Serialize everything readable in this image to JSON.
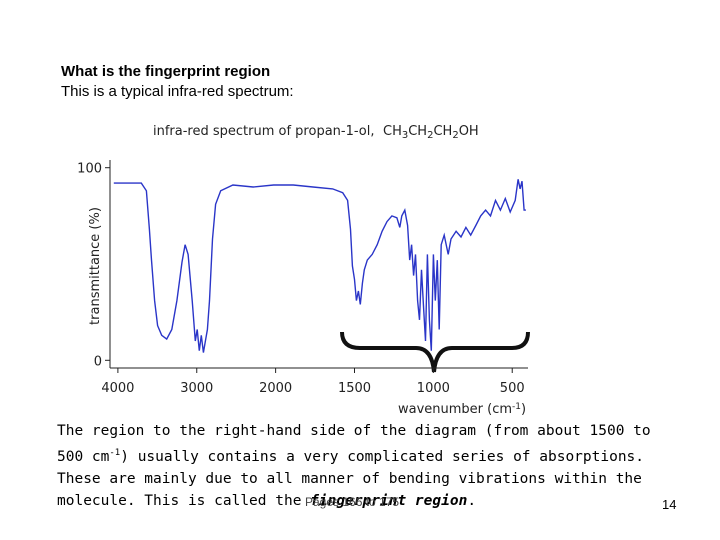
{
  "heading": {
    "title": "What is the fingerprint region",
    "subtitle": "This is a typical infra-red spectrum:"
  },
  "chart_data": {
    "type": "line",
    "title": "infra-red spectrum of propan-1-ol,",
    "formula": "CH3CH2CH2OH",
    "xlabel": "wavenumber (cm-1)",
    "ylabel": "transmittance (%)",
    "xlim": [
      4100,
      400
    ],
    "ylim": [
      -4,
      104
    ],
    "x_scale_change": 2000,
    "xticks": [
      4000,
      3000,
      2000,
      1500,
      1000,
      500
    ],
    "yticks": [
      0,
      100
    ],
    "color": "#2a35c8",
    "x": [
      4052,
      3897,
      3703,
      3639,
      3600,
      3574,
      3535,
      3497,
      3445,
      3381,
      3316,
      3252,
      3187,
      3148,
      3110,
      3058,
      3019,
      2994,
      2968,
      2942,
      2916,
      2890,
      2865,
      2839,
      2800,
      2761,
      2697,
      2542,
      2284,
      2026,
      1888,
      1763,
      1638,
      1575,
      1544,
      1525,
      1513,
      1500,
      1488,
      1475,
      1463,
      1450,
      1438,
      1419,
      1388,
      1356,
      1325,
      1294,
      1263,
      1231,
      1213,
      1200,
      1181,
      1163,
      1150,
      1138,
      1125,
      1113,
      1100,
      1088,
      1075,
      1063,
      1050,
      1038,
      1025,
      1013,
      1000,
      988,
      975,
      963,
      950,
      931,
      906,
      888,
      856,
      825,
      794,
      763,
      731,
      700,
      669,
      638,
      606,
      575,
      544,
      513,
      481,
      463,
      450,
      438,
      425,
      413
    ],
    "values": [
      92,
      92,
      92,
      88,
      68,
      52,
      31,
      18,
      13,
      11,
      16,
      31,
      51,
      60,
      55,
      31,
      10,
      16,
      5,
      13,
      4,
      10,
      16,
      31,
      63,
      81,
      88,
      91,
      90,
      91,
      91,
      90,
      89,
      87,
      83,
      68,
      49,
      42,
      31,
      36,
      29,
      40,
      47,
      52,
      55,
      60,
      67,
      72,
      75,
      74,
      69,
      75,
      78,
      70,
      52,
      60,
      44,
      55,
      31,
      21,
      47,
      29,
      10,
      55,
      21,
      5,
      55,
      31,
      52,
      16,
      60,
      65,
      55,
      63,
      67,
      64,
      69,
      65,
      70,
      75,
      78,
      75,
      83,
      78,
      84,
      77,
      83,
      94,
      89,
      93,
      78,
      78
    ]
  },
  "body": [
    "The region to the right-hand side of the diagram (from about 1500 to 500 cm",
    "-1",
    ") usually contains a very complicated series of absorptions. These are mainly due to all manner of bending vibrations within the molecule. This is called the ",
    "fingerprint region",
    "."
  ],
  "footer": {
    "source": "Pages 166 to 175",
    "page": "14"
  }
}
